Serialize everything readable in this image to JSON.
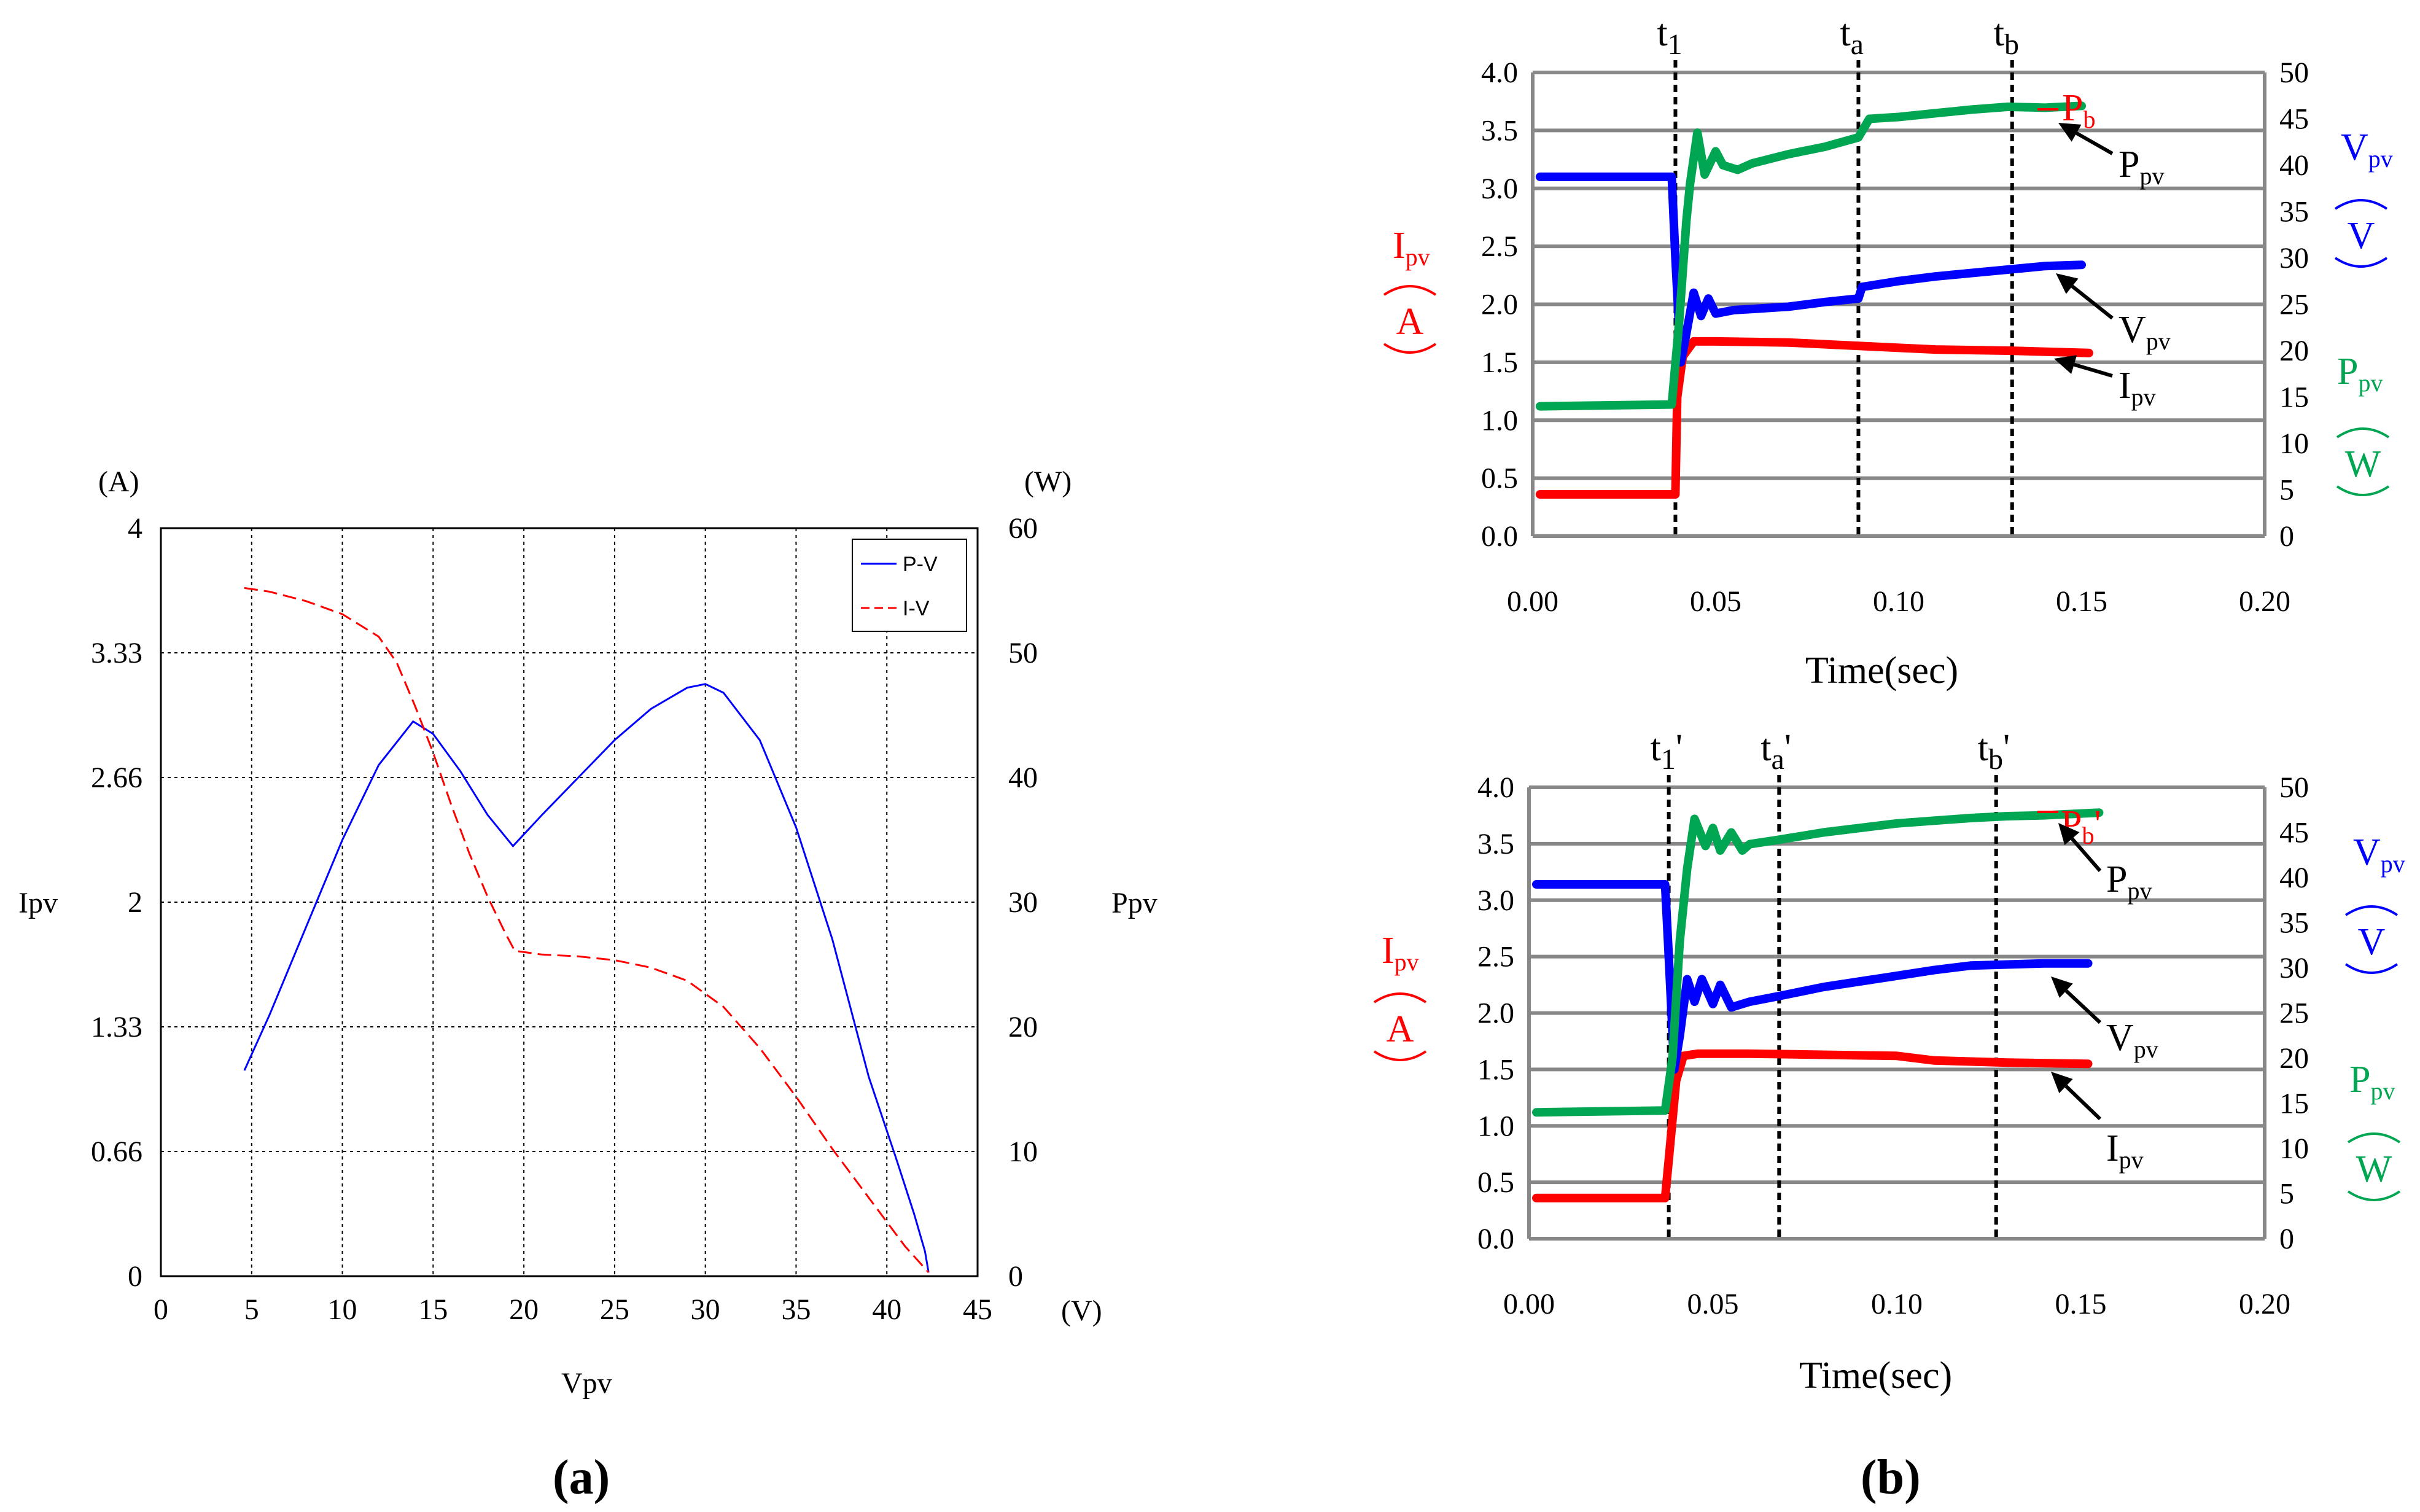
{
  "colors": {
    "pv": "#0000ff",
    "iv": "#ff0000",
    "ipv": "#ff0000",
    "vpv": "#0000ff",
    "ppv": "#00a651",
    "grid": "#888888",
    "black": "#000000"
  },
  "chart_data": [
    {
      "id": "a",
      "type": "line",
      "caption_open": "(",
      "caption_letter": "a",
      "caption_close": ")",
      "xlabel": "Vpv",
      "x_unit": "(V)",
      "ylabel_left": "Ipv",
      "y_unit_left": "(A)",
      "ylabel_right": "Ppv",
      "y_unit_right": "(W)",
      "xlim": [
        0,
        45
      ],
      "ylim_left": [
        0,
        4
      ],
      "ylim_right": [
        0,
        60
      ],
      "x_ticks": [
        "0",
        "5",
        "10",
        "15",
        "20",
        "25",
        "30",
        "35",
        "40",
        "45"
      ],
      "y_ticks_left": [
        "0",
        "0.66",
        "1.33",
        "2",
        "2.66",
        "3.33",
        "4"
      ],
      "y_ticks_right": [
        "0",
        "10",
        "20",
        "30",
        "40",
        "50",
        "60"
      ],
      "grid": "dotted",
      "legend": [
        "P-V",
        "I-V"
      ],
      "legend_position": "top-right",
      "series": [
        {
          "name": "P-V",
          "axis": "right",
          "style": "solid",
          "x": [
            4.6,
            6,
            8,
            10,
            12,
            13.9,
            15,
            16.5,
            18,
            19.4,
            21,
            23,
            25,
            27,
            29,
            30,
            31,
            33,
            35,
            37,
            39,
            40.5,
            41.5,
            42.1,
            42.3
          ],
          "y": [
            16.5,
            21,
            28,
            35,
            41,
            44.5,
            43.5,
            40.5,
            37,
            34.5,
            37,
            40,
            43,
            45.5,
            47.2,
            47.5,
            46.8,
            43,
            36,
            27,
            16,
            9.5,
            5,
            2,
            0.3
          ]
        },
        {
          "name": "I-V",
          "axis": "left",
          "style": "dashed",
          "x": [
            4.6,
            6,
            8,
            10,
            12,
            13,
            14,
            15,
            16,
            17,
            18,
            19,
            19.5,
            21,
            23,
            25,
            27,
            29,
            31,
            33,
            35,
            37,
            39,
            41,
            42.3
          ],
          "y": [
            3.68,
            3.66,
            3.61,
            3.54,
            3.42,
            3.28,
            3.05,
            2.8,
            2.52,
            2.26,
            2.03,
            1.83,
            1.74,
            1.72,
            1.71,
            1.69,
            1.65,
            1.58,
            1.44,
            1.22,
            0.96,
            0.68,
            0.42,
            0.16,
            0.02
          ]
        }
      ]
    },
    {
      "id": "b-top",
      "type": "line",
      "xlabel": "Time(sec)",
      "xlim": [
        0,
        0.2
      ],
      "ylim_left": [
        0,
        4
      ],
      "ylim_right": [
        0,
        50
      ],
      "x_ticks": [
        "0.00",
        "0.05",
        "0.10",
        "0.15",
        "0.20"
      ],
      "y_ticks_left": [
        "0.0",
        "0.5",
        "1.0",
        "1.5",
        "2.0",
        "2.5",
        "3.0",
        "3.5",
        "4.0"
      ],
      "y_ticks_right": [
        "0",
        "5",
        "10",
        "15",
        "20",
        "25",
        "30",
        "35",
        "40",
        "45",
        "50"
      ],
      "left_label_main": "I",
      "left_label_sub": "pv",
      "left_unit": "A",
      "right_label1_main": "V",
      "right_label1_sub": "pv",
      "right_unit1": "V",
      "right_label2_main": "P",
      "right_label2_sub": "pv",
      "right_unit2": "W",
      "markers": [
        {
          "t": 0.039,
          "main": "t",
          "sub": "1",
          "prime": ""
        },
        {
          "t": 0.089,
          "main": "t",
          "sub": "a",
          "prime": ""
        },
        {
          "t": 0.131,
          "main": "t",
          "sub": "b",
          "prime": ""
        }
      ],
      "annotations": {
        "pb_main": "P",
        "pb_sub": "b",
        "pb_prime": "",
        "ppv_main": "P",
        "ppv_sub": "pv",
        "vpv_main": "V",
        "vpv_sub": "pv",
        "ipv_main": "I",
        "ipv_sub": "pv"
      },
      "series": [
        {
          "name": "Ipv",
          "axis": "left",
          "t": [
            0.002,
            0.039,
            0.0395,
            0.041,
            0.044,
            0.05,
            0.07,
            0.09,
            0.11,
            0.13,
            0.152
          ],
          "v": [
            0.36,
            0.36,
            1.2,
            1.55,
            1.68,
            1.68,
            1.67,
            1.64,
            1.61,
            1.6,
            1.58
          ]
        },
        {
          "name": "Vpv",
          "axis": "left",
          "t": [
            0.002,
            0.038,
            0.039,
            0.0405,
            0.042,
            0.044,
            0.046,
            0.048,
            0.05,
            0.055,
            0.06,
            0.07,
            0.08,
            0.089,
            0.09,
            0.1,
            0.11,
            0.12,
            0.13,
            0.14,
            0.15
          ],
          "v": [
            3.1,
            3.1,
            2.4,
            1.5,
            1.75,
            2.1,
            1.9,
            2.05,
            1.92,
            1.95,
            1.96,
            1.98,
            2.02,
            2.05,
            2.15,
            2.2,
            2.24,
            2.27,
            2.3,
            2.33,
            2.34
          ]
        },
        {
          "name": "Ppv",
          "axis": "right",
          "t": [
            0.002,
            0.038,
            0.04,
            0.042,
            0.043,
            0.045,
            0.047,
            0.05,
            0.052,
            0.056,
            0.06,
            0.07,
            0.08,
            0.089,
            0.092,
            0.1,
            0.11,
            0.12,
            0.13,
            0.14,
            0.15
          ],
          "v": [
            14,
            14.2,
            23,
            34,
            38,
            43.5,
            39,
            41.5,
            40,
            39.5,
            40.2,
            41.2,
            42,
            43,
            45,
            45.2,
            45.6,
            46,
            46.3,
            46.2,
            46.4
          ]
        }
      ]
    },
    {
      "id": "b-bottom",
      "type": "line",
      "caption_open": "(",
      "caption_letter": "b",
      "caption_close": ")",
      "xlabel": "Time(sec)",
      "xlim": [
        0,
        0.2
      ],
      "ylim_left": [
        0,
        4
      ],
      "ylim_right": [
        0,
        50
      ],
      "x_ticks": [
        "0.00",
        "0.05",
        "0.10",
        "0.15",
        "0.20"
      ],
      "y_ticks_left": [
        "0.0",
        "0.5",
        "1.0",
        "1.5",
        "2.0",
        "2.5",
        "3.0",
        "3.5",
        "4.0"
      ],
      "y_ticks_right": [
        "0",
        "5",
        "10",
        "15",
        "20",
        "25",
        "30",
        "35",
        "40",
        "45",
        "50"
      ],
      "left_label_main": "I",
      "left_label_sub": "pv",
      "left_unit": "A",
      "right_label1_main": "V",
      "right_label1_sub": "pv",
      "right_unit1": "V",
      "right_label2_main": "P",
      "right_label2_sub": "pv",
      "right_unit2": "W",
      "markers": [
        {
          "t": 0.038,
          "main": "t",
          "sub": "1",
          "prime": "'"
        },
        {
          "t": 0.068,
          "main": "t",
          "sub": "a",
          "prime": "'"
        },
        {
          "t": 0.127,
          "main": "t",
          "sub": "b",
          "prime": "'"
        }
      ],
      "annotations": {
        "pb_main": "P",
        "pb_sub": "b",
        "pb_prime": "'",
        "ppv_main": "P",
        "ppv_sub": "pv",
        "vpv_main": "V",
        "vpv_sub": "pv",
        "ipv_main": "I",
        "ipv_sub": "pv"
      },
      "series": [
        {
          "name": "Ipv",
          "axis": "left",
          "t": [
            0.002,
            0.037,
            0.038,
            0.04,
            0.042,
            0.046,
            0.06,
            0.08,
            0.1,
            0.11,
            0.13,
            0.152
          ],
          "v": [
            0.36,
            0.36,
            0.7,
            1.4,
            1.62,
            1.64,
            1.64,
            1.63,
            1.62,
            1.58,
            1.56,
            1.55
          ]
        },
        {
          "name": "Vpv",
          "axis": "left",
          "t": [
            0.002,
            0.037,
            0.038,
            0.0395,
            0.041,
            0.043,
            0.045,
            0.047,
            0.05,
            0.052,
            0.055,
            0.06,
            0.068,
            0.08,
            0.1,
            0.11,
            0.12,
            0.13,
            0.14,
            0.152
          ],
          "v": [
            3.14,
            3.14,
            2.5,
            1.5,
            1.8,
            2.3,
            2.1,
            2.3,
            2.08,
            2.25,
            2.05,
            2.1,
            2.15,
            2.23,
            2.33,
            2.38,
            2.42,
            2.43,
            2.44,
            2.44
          ]
        },
        {
          "name": "Ppv",
          "axis": "right",
          "t": [
            0.002,
            0.037,
            0.039,
            0.041,
            0.043,
            0.045,
            0.048,
            0.05,
            0.052,
            0.055,
            0.058,
            0.06,
            0.068,
            0.08,
            0.1,
            0.12,
            0.13,
            0.14,
            0.155
          ],
          "v": [
            14,
            14.2,
            20,
            33,
            41,
            46.5,
            43.5,
            45.5,
            43,
            45,
            43,
            43.7,
            44.2,
            45,
            46,
            46.6,
            46.8,
            46.9,
            47.2
          ]
        }
      ]
    }
  ]
}
